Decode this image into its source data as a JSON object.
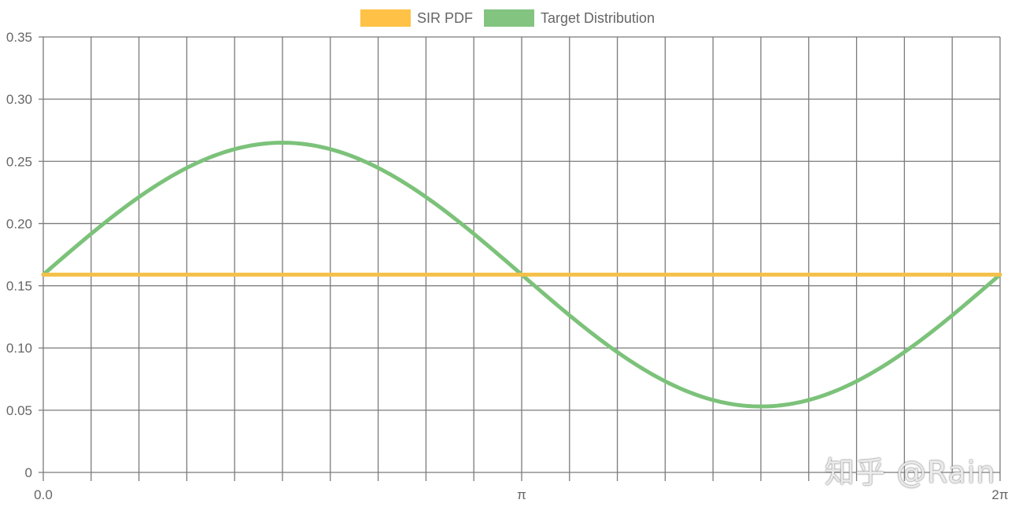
{
  "chart_data": {
    "type": "line",
    "xlabel": "",
    "ylabel": "",
    "x_range": [
      0,
      6.283185307179586
    ],
    "x_tick_labels": [
      "0.0",
      "π",
      "2π"
    ],
    "ylim": [
      0,
      0.35
    ],
    "y_ticks": [
      0,
      0.05,
      0.1,
      0.15,
      0.2,
      0.25,
      0.3,
      0.35
    ],
    "y_tick_labels": [
      "0",
      "0.05",
      "0.10",
      "0.15",
      "0.20",
      "0.25",
      "0.30",
      "0.35"
    ],
    "grid": true,
    "legend_position": "top-center",
    "series": [
      {
        "name": "SIR PDF",
        "color": "#f4c04a",
        "legend_color": "#ffc247",
        "function": "constant",
        "value": 0.159
      },
      {
        "name": "Target Distribution",
        "color": "#7cc27a",
        "legend_color": "#82c480",
        "function": "sine",
        "offset": 0.159,
        "amplitude": 0.106
      }
    ]
  },
  "watermark": "知乎 @Rain"
}
